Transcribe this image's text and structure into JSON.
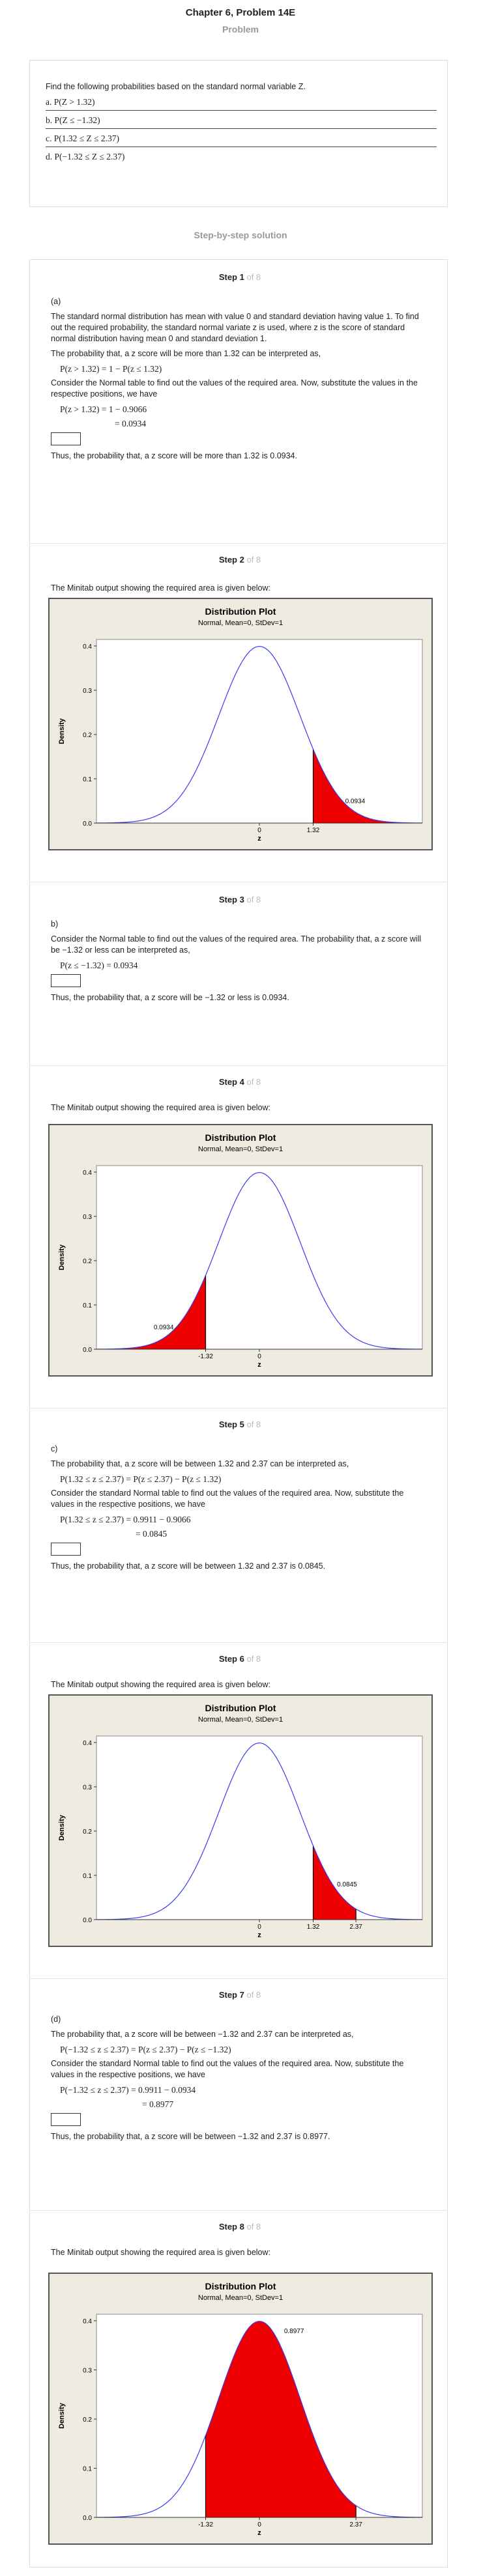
{
  "page": {
    "title": "Chapter 6, Problem 14E",
    "problem_label": "Problem",
    "solution_label": "Step-by-step solution"
  },
  "problem": {
    "intro": "Find the following probabilities based on the standard normal variable Z.",
    "parts": [
      "a. P(Z > 1.32)",
      "b. P(Z ≤ −1.32)",
      "c. P(1.32 ≤ Z ≤ 2.37)",
      "d. P(−1.32 ≤ Z ≤ 2.37)"
    ]
  },
  "steps": [
    {
      "head": "Step 1",
      "of": "of 8",
      "part": "(a)",
      "lines": [
        "The standard normal distribution has mean with value 0 and standard deviation having value 1. To find out the required probability, the standard normal variate z is used, where z is the score of standard normal distribution having mean 0 and standard deviation 1.",
        "The probability that, a z score will be more than 1.32 can be interpreted as,"
      ],
      "math1": "P(z > 1.32) = 1 − P(z ≤ 1.32)",
      "line3": "Consider the Normal table to find out the values of the required area. Now, substitute the values in the respective positions, we have",
      "math2a": "P(z > 1.32) = 1 − 0.9066",
      "math2b": "= 0.0934",
      "conclusion": "Thus, the probability that, a z score will be more than 1.32 is 0.0934."
    },
    {
      "head": "Step 2",
      "of": "of 8",
      "caption": "The Minitab output showing the required area is given below:"
    },
    {
      "head": "Step 3",
      "of": "of 8",
      "part": "b)",
      "line1": "Consider the Normal table to find out the values of the required area. The probability that, a z score will be −1.32 or less can be interpreted as,",
      "math1": "P(z ≤ −1.32) = 0.0934",
      "conclusion": "Thus, the probability that, a z score will be −1.32 or less is 0.0934."
    },
    {
      "head": "Step 4",
      "of": "of 8",
      "caption": "The Minitab output showing the required area is given below:"
    },
    {
      "head": "Step 5",
      "of": "of 8",
      "part": "c)",
      "line1": "The probability that, a z score will be between 1.32 and 2.37 can be interpreted as,",
      "math1": "P(1.32 ≤ z ≤ 2.37) = P(z ≤ 2.37) − P(z ≤ 1.32)",
      "line2": "Consider the standard Normal table to find out the values of the required area. Now, substitute the values in the respective positions, we have",
      "math2a": "P(1.32 ≤ z ≤ 2.37) = 0.9911 − 0.9066",
      "math2b": "= 0.0845",
      "conclusion": "Thus, the probability that, a z score will be between 1.32 and 2.37 is 0.0845."
    },
    {
      "head": "Step 6",
      "of": "of 8",
      "caption": "The Minitab output showing the required area is given below:"
    },
    {
      "head": "Step 7",
      "of": "of 8",
      "part": "(d)",
      "line1": "The probability that, a z score will be between −1.32 and 2.37 can be interpreted as,",
      "math1": "P(−1.32 ≤ z ≤ 2.37) = P(z ≤ 2.37) − P(z ≤ −1.32)",
      "line2": "Consider the standard Normal table to find out the values of the required area. Now, substitute the values in the respective positions, we have",
      "math2a": "P(−1.32 ≤ z ≤ 2.37) = 0.9911 − 0.0934",
      "math2b": "= 0.8977",
      "conclusion": "Thus, the probability that, a z score will be between −1.32 and 2.37 is 0.8977."
    },
    {
      "head": "Step 8",
      "of": "of 8",
      "caption": "The Minitab output showing the required area is given below:"
    }
  ],
  "chart_data": [
    {
      "type": "area",
      "title": "Distribution Plot",
      "subtitle": "Normal, Mean=0, StDev=1",
      "xlabel": "z",
      "ylabel": "Density",
      "ylim": [
        0,
        0.4
      ],
      "yticks": [
        "0.0",
        "0.1",
        "0.2",
        "0.3",
        "0.4"
      ],
      "xlim": [
        -4,
        4
      ],
      "shade": [
        1.32,
        4
      ],
      "xtick_labels": [
        {
          "x": 0,
          "label": "0"
        },
        {
          "x": 1.32,
          "label": "1.32"
        }
      ],
      "area_label": "0.0934",
      "area_label_pos": {
        "x": 2.35,
        "y": 0.045
      },
      "colors": {
        "curve": "#3a3af0",
        "fill": "#ee0000"
      }
    },
    {
      "type": "area",
      "title": "Distribution Plot",
      "subtitle": "Normal, Mean=0, StDev=1",
      "xlabel": "z",
      "ylabel": "Density",
      "ylim": [
        0,
        0.4
      ],
      "yticks": [
        "0.0",
        "0.1",
        "0.2",
        "0.3",
        "0.4"
      ],
      "xlim": [
        -4,
        4
      ],
      "shade": [
        -4,
        -1.32
      ],
      "xtick_labels": [
        {
          "x": -1.32,
          "label": "-1.32"
        },
        {
          "x": 0,
          "label": "0"
        }
      ],
      "area_label": "0.0934",
      "area_label_pos": {
        "x": -2.35,
        "y": 0.045
      },
      "colors": {
        "curve": "#3a3af0",
        "fill": "#ee0000"
      }
    },
    {
      "type": "area",
      "title": "Distribution Plot",
      "subtitle": "Normal, Mean=0, StDev=1",
      "xlabel": "z",
      "ylabel": "Density",
      "ylim": [
        0,
        0.4
      ],
      "yticks": [
        "0.0",
        "0.1",
        "0.2",
        "0.3",
        "0.4"
      ],
      "xlim": [
        -4,
        4
      ],
      "shade": [
        1.32,
        2.37
      ],
      "xtick_labels": [
        {
          "x": 0,
          "label": "0"
        },
        {
          "x": 1.32,
          "label": "1.32"
        },
        {
          "x": 2.37,
          "label": "2.37"
        }
      ],
      "area_label": "0.0845",
      "area_label_pos": {
        "x": 2.15,
        "y": 0.075
      },
      "colors": {
        "curve": "#3a3af0",
        "fill": "#ee0000"
      }
    },
    {
      "type": "area",
      "title": "Distribution Plot",
      "subtitle": "Normal, Mean=0, StDev=1",
      "xlabel": "z",
      "ylabel": "Density",
      "ylim": [
        0,
        0.4
      ],
      "yticks": [
        "0.0",
        "0.1",
        "0.2",
        "0.3",
        "0.4"
      ],
      "xlim": [
        -4,
        4
      ],
      "shade": [
        -1.32,
        2.37
      ],
      "xtick_labels": [
        {
          "x": -1.32,
          "label": "-1.32"
        },
        {
          "x": 0,
          "label": "0"
        },
        {
          "x": 2.37,
          "label": "2.37"
        }
      ],
      "area_label": "0.8977",
      "area_label_pos": {
        "x": 0.85,
        "y": 0.375
      },
      "colors": {
        "curve": "#3a3af0",
        "fill": "#ee0000"
      }
    }
  ]
}
